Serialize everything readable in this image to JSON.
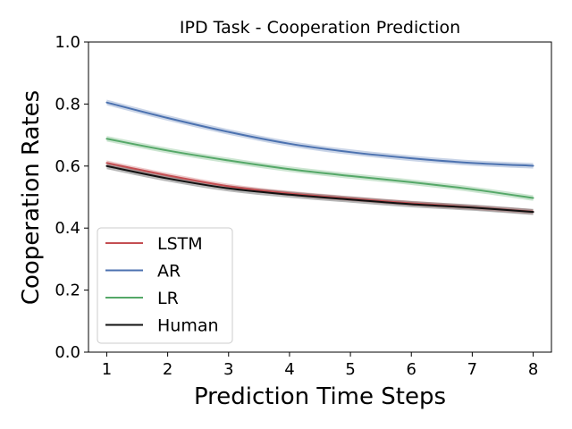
{
  "chart_data": {
    "type": "line",
    "title": "IPD Task - Cooperation Prediction",
    "xlabel": "Prediction Time Steps",
    "ylabel": "Cooperation Rates",
    "x": [
      1,
      2,
      3,
      4,
      5,
      6,
      7,
      8
    ],
    "xticks": [
      "1",
      "2",
      "3",
      "4",
      "5",
      "6",
      "7",
      "8"
    ],
    "yticks": [
      "0.0",
      "0.2",
      "0.4",
      "0.6",
      "0.8",
      "1.0"
    ],
    "xlim": [
      0.7,
      8.3
    ],
    "ylim": [
      0.0,
      1.0
    ],
    "grid": false,
    "legend_position": "lower-left",
    "series": [
      {
        "name": "LSTM",
        "color": "#c44e52",
        "values": [
          0.61,
          0.57,
          0.535,
          0.512,
          0.495,
          0.48,
          0.467,
          0.453
        ],
        "band": 0.008
      },
      {
        "name": "AR",
        "color": "#4c72b0",
        "values": [
          0.805,
          0.755,
          0.71,
          0.672,
          0.645,
          0.625,
          0.61,
          0.601
        ],
        "band": 0.009
      },
      {
        "name": "LR",
        "color": "#55a868",
        "values": [
          0.688,
          0.65,
          0.618,
          0.59,
          0.568,
          0.548,
          0.525,
          0.497
        ],
        "band": 0.009
      },
      {
        "name": "Human",
        "color": "#111111",
        "values": [
          0.6,
          0.56,
          0.528,
          0.508,
          0.492,
          0.477,
          0.466,
          0.452
        ],
        "band": 0.01
      }
    ]
  }
}
